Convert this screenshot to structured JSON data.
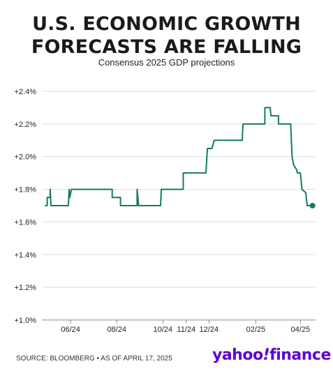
{
  "header": {
    "title_line1": "U.S. ECONOMIC GROWTH",
    "title_line2": "FORECASTS ARE FALLING",
    "subtitle": "Consensus 2025 GDP projections"
  },
  "footer": {
    "source": "SOURCE: BLOOMBERG • AS OF APRIL 17, 2025",
    "brand_yahoo": "yahoo",
    "brand_bang": "!",
    "brand_finance": "finance"
  },
  "colors": {
    "line": "#137a63",
    "grid": "#dddddd",
    "brand": "#6001d2"
  },
  "chart_data": {
    "type": "line",
    "title": "Consensus 2025 GDP projections",
    "xlabel": "",
    "ylabel": "",
    "ylim": [
      1.0,
      2.4
    ],
    "xlim": [
      "2024-04-24",
      "2025-04-21"
    ],
    "grid": "horizontal",
    "y_ticks": [
      {
        "value": 1.0,
        "label": "+1.0%"
      },
      {
        "value": 1.2,
        "label": "+1.2%"
      },
      {
        "value": 1.4,
        "label": "+1.4%"
      },
      {
        "value": 1.6,
        "label": "+1.6%"
      },
      {
        "value": 1.8,
        "label": "+1.8%"
      },
      {
        "value": 2.0,
        "label": "+2.0%"
      },
      {
        "value": 2.2,
        "label": "+2.2%"
      },
      {
        "value": 2.4,
        "label": "+2.4%"
      }
    ],
    "x_ticks": [
      {
        "date": "2024-06-01",
        "label": "06/24"
      },
      {
        "date": "2024-08-01",
        "label": "08/24"
      },
      {
        "date": "2024-10-01",
        "label": "10/24"
      },
      {
        "date": "2024-11-01",
        "label": "11/24"
      },
      {
        "date": "2024-12-01",
        "label": "12/24"
      },
      {
        "date": "2025-02-01",
        "label": "02/25"
      },
      {
        "date": "2025-04-01",
        "label": "04/25"
      }
    ],
    "series": [
      {
        "name": "",
        "points": [
          [
            "2024-04-28",
            1.7
          ],
          [
            "2024-05-01",
            1.7
          ],
          [
            "2024-05-01",
            1.75
          ],
          [
            "2024-05-05",
            1.75
          ],
          [
            "2024-05-05",
            1.8
          ],
          [
            "2024-05-06",
            1.7
          ],
          [
            "2024-05-08",
            1.7
          ],
          [
            "2024-05-29",
            1.7
          ],
          [
            "2024-05-30",
            1.8
          ],
          [
            "2024-05-31",
            1.75
          ],
          [
            "2024-06-02",
            1.8
          ],
          [
            "2024-07-26",
            1.8
          ],
          [
            "2024-07-26",
            1.75
          ],
          [
            "2024-08-06",
            1.75
          ],
          [
            "2024-08-06",
            1.7
          ],
          [
            "2024-08-28",
            1.7
          ],
          [
            "2024-08-28",
            1.8
          ],
          [
            "2024-08-30",
            1.7
          ],
          [
            "2024-09-28",
            1.7
          ],
          [
            "2024-09-29",
            1.8
          ],
          [
            "2024-10-28",
            1.8
          ],
          [
            "2024-10-28",
            1.9
          ],
          [
            "2024-11-27",
            1.9
          ],
          [
            "2024-11-29",
            2.05
          ],
          [
            "2024-12-05",
            2.05
          ],
          [
            "2024-12-08",
            2.1
          ],
          [
            "2025-01-14",
            2.1
          ],
          [
            "2025-01-15",
            2.2
          ],
          [
            "2025-02-13",
            2.2
          ],
          [
            "2025-02-13",
            2.3
          ],
          [
            "2025-02-20",
            2.3
          ],
          [
            "2025-02-21",
            2.25
          ],
          [
            "2025-03-03",
            2.25
          ],
          [
            "2025-03-03",
            2.2
          ],
          [
            "2025-03-19",
            2.2
          ],
          [
            "2025-03-21",
            2.0
          ],
          [
            "2025-03-23",
            1.95
          ],
          [
            "2025-03-27",
            1.92
          ],
          [
            "2025-03-28",
            1.9
          ],
          [
            "2025-04-01",
            1.9
          ],
          [
            "2025-04-03",
            1.8
          ],
          [
            "2025-04-08",
            1.78
          ],
          [
            "2025-04-10",
            1.7
          ],
          [
            "2025-04-17",
            1.7
          ]
        ],
        "end_marker": [
          "2025-04-17",
          1.7
        ]
      }
    ]
  }
}
